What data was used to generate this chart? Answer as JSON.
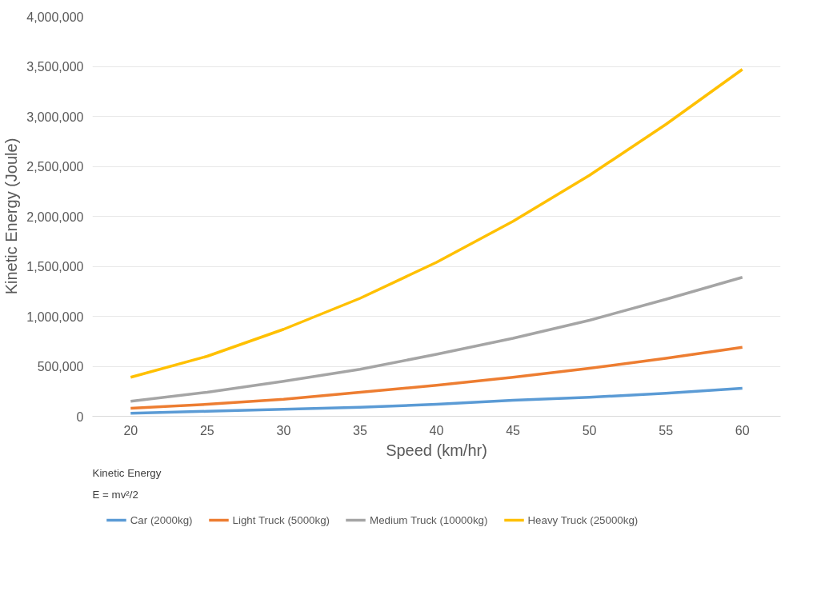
{
  "chart_data": {
    "type": "line",
    "xlabel": "Speed (km/hr)",
    "ylabel": "Kinetic Energy (Joule)",
    "x": [
      20,
      25,
      30,
      35,
      40,
      45,
      50,
      55,
      60
    ],
    "xlim": [
      17.5,
      62.5
    ],
    "xticks": [
      20,
      25,
      30,
      35,
      40,
      45,
      50,
      55,
      60
    ],
    "ylim": [
      0,
      4000000
    ],
    "yticks": [
      {
        "value": 0,
        "label": "0"
      },
      {
        "value": 500000,
        "label": "500,000"
      },
      {
        "value": 1000000,
        "label": "1,000,000"
      },
      {
        "value": 1500000,
        "label": "1,500,000"
      },
      {
        "value": 2000000,
        "label": "2,000,000"
      },
      {
        "value": 2500000,
        "label": "2,500,000"
      },
      {
        "value": 3000000,
        "label": "3,000,000"
      },
      {
        "value": 3500000,
        "label": "3,500,000"
      },
      {
        "value": 4000000,
        "label": "4,000,000"
      }
    ],
    "grid": "y",
    "legend": "bottom",
    "marker": "none",
    "line_style": "solid",
    "annotations": [
      "Kinetic Energy",
      "E = mv²/2"
    ],
    "series": [
      {
        "name": "Car (2000kg)",
        "color": "#5b9bd5",
        "values": [
          30000,
          50000,
          70000,
          90000,
          120000,
          160000,
          190000,
          230000,
          280000
        ]
      },
      {
        "name": "Light Truck (5000kg)",
        "color": "#ed7d31",
        "values": [
          80000,
          120000,
          170000,
          240000,
          310000,
          390000,
          480000,
          580000,
          690000
        ]
      },
      {
        "name": "Medium Truck (10000kg)",
        "color": "#a5a5a5",
        "values": [
          150000,
          240000,
          350000,
          470000,
          620000,
          780000,
          960000,
          1170000,
          1390000
        ]
      },
      {
        "name": "Heavy Truck (25000kg)",
        "color": "#ffc000",
        "values": [
          390000,
          600000,
          870000,
          1180000,
          1540000,
          1950000,
          2410000,
          2920000,
          3470000
        ]
      }
    ]
  }
}
